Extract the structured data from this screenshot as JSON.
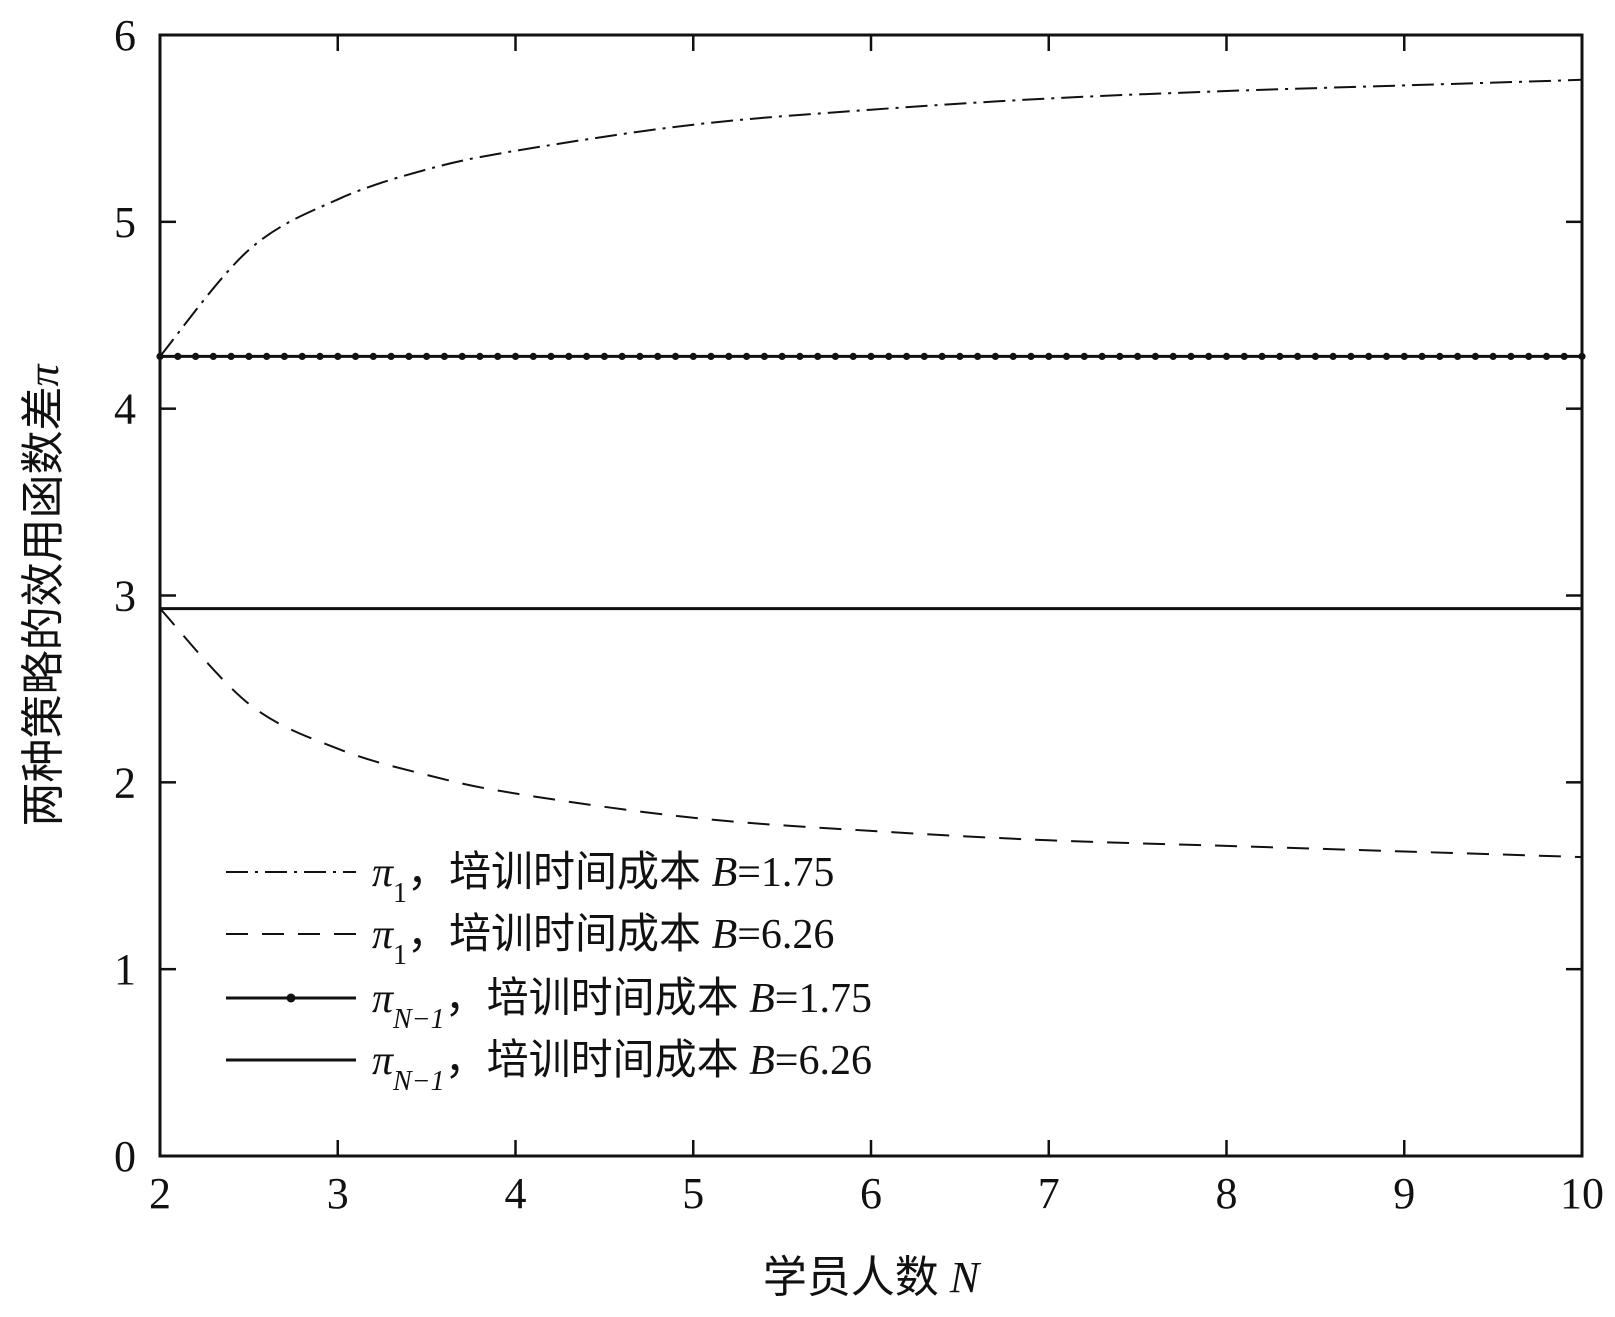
{
  "chart_data": {
    "type": "line",
    "xlabel_prefix": "学员人数",
    "xlabel_var": "N",
    "ylabel_prefix": "两种策略的效用函数差",
    "ylabel_var": "π",
    "xlim": [
      2,
      10
    ],
    "ylim": [
      0,
      6
    ],
    "xticks": [
      2,
      3,
      4,
      5,
      6,
      7,
      8,
      9,
      10
    ],
    "yticks": [
      0,
      1,
      2,
      3,
      4,
      5,
      6
    ],
    "grid": false,
    "legend_position": "bottom-left",
    "x": [
      2,
      2.5,
      3,
      3.5,
      4,
      5,
      6,
      7,
      8,
      9,
      10
    ],
    "series": [
      {
        "symbol": "π",
        "subscript": "1",
        "label_cn": "培训时间成本",
        "param_var": "B",
        "param_value": "=1.75",
        "style": "dashdot",
        "values": [
          4.28,
          4.85,
          5.12,
          5.28,
          5.38,
          5.52,
          5.6,
          5.66,
          5.7,
          5.73,
          5.76
        ]
      },
      {
        "symbol": "π",
        "subscript": "1",
        "label_cn": "培训时间成本",
        "param_var": "B",
        "param_value": "=6.26",
        "style": "dashed",
        "values": [
          2.93,
          2.42,
          2.18,
          2.04,
          1.94,
          1.81,
          1.74,
          1.69,
          1.66,
          1.63,
          1.6
        ]
      },
      {
        "symbol": "π",
        "subscript": "N−1",
        "label_cn": "培训时间成本",
        "param_var": "B",
        "param_value": "=1.75",
        "style": "solid-dots",
        "values": [
          4.28,
          4.28,
          4.28,
          4.28,
          4.28,
          4.28,
          4.28,
          4.28,
          4.28,
          4.28,
          4.28
        ]
      },
      {
        "symbol": "π",
        "subscript": "N−1",
        "label_cn": "培训时间成本",
        "param_var": "B",
        "param_value": "=6.26",
        "style": "solid",
        "values": [
          2.93,
          2.93,
          2.93,
          2.93,
          2.93,
          2.93,
          2.93,
          2.93,
          2.93,
          2.93,
          2.93
        ]
      }
    ]
  }
}
